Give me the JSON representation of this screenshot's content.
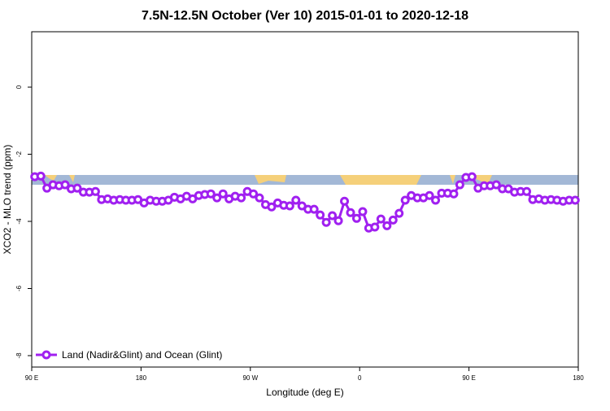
{
  "chart_data": {
    "type": "line",
    "title": "7.5N-12.5N October (Ver 10)   2015-01-01 to 2020-12-18",
    "x_label": "Longitude (deg E)",
    "y_label": "XCO2 - MLO trend (ppm)",
    "x": [
      92.5,
      97.5,
      102.5,
      107.5,
      112.5,
      117.5,
      122.5,
      127.5,
      132.5,
      137.5,
      142.5,
      147.5,
      152.5,
      157.5,
      162.5,
      167.5,
      172.5,
      177.5,
      182.5,
      187.5,
      192.5,
      197.5,
      202.5,
      207.5,
      212.5,
      217.5,
      222.5,
      227.5,
      232.5,
      237.5,
      242.5,
      247.5,
      252.5,
      257.5,
      262.5,
      267.5,
      272.5,
      277.5,
      282.5,
      287.5,
      292.5,
      297.5,
      302.5,
      307.5,
      312.5,
      317.5,
      322.5,
      327.5,
      332.5,
      337.5,
      342.5,
      347.5,
      352.5,
      357.5,
      362.5,
      367.5,
      372.5,
      377.5,
      382.5,
      387.5,
      392.5,
      397.5,
      402.5,
      407.5,
      412.5,
      417.5,
      422.5,
      427.5,
      432.5,
      437.5,
      442.5,
      447.5,
      452.5,
      457.5,
      462.5,
      467.5,
      472.5,
      477.5,
      482.5,
      487.5,
      492.5,
      497.5,
      502.5,
      507.5,
      512.5,
      517.5,
      522.5,
      527.5,
      532.5,
      537.5
    ],
    "series": [
      {
        "name": "Land (Nadir&Glint) and Ocean (Glint)",
        "color": "#a020f0",
        "values": [
          -2.67,
          -2.65,
          -3.01,
          -2.91,
          -2.94,
          -2.91,
          -3.03,
          -3.01,
          -3.13,
          -3.13,
          -3.11,
          -3.35,
          -3.33,
          -3.37,
          -3.35,
          -3.37,
          -3.37,
          -3.35,
          -3.45,
          -3.37,
          -3.4,
          -3.4,
          -3.37,
          -3.28,
          -3.33,
          -3.25,
          -3.33,
          -3.23,
          -3.2,
          -3.18,
          -3.3,
          -3.18,
          -3.33,
          -3.25,
          -3.3,
          -3.11,
          -3.18,
          -3.3,
          -3.5,
          -3.57,
          -3.45,
          -3.52,
          -3.54,
          -3.37,
          -3.54,
          -3.64,
          -3.64,
          -3.81,
          -4.03,
          -3.83,
          -3.98,
          -3.4,
          -3.74,
          -3.91,
          -3.71,
          -4.2,
          -4.17,
          -3.93,
          -4.13,
          -3.96,
          -3.76,
          -3.37,
          -3.23,
          -3.3,
          -3.3,
          -3.23,
          -3.37,
          -3.16,
          -3.16,
          -3.18,
          -2.91,
          -2.69,
          -2.67,
          -3.01,
          -2.94,
          -2.94,
          -2.91,
          -3.03,
          -3.03,
          -3.13,
          -3.11,
          -3.11,
          -3.35,
          -3.33,
          -3.37,
          -3.35,
          -3.37,
          -3.4,
          -3.37,
          -3.37
        ]
      }
    ],
    "xlim": [
      90,
      540
    ],
    "xticks": [
      {
        "value": 90,
        "label": "90 E"
      },
      180,
      {
        "value": 270,
        "label": "90 W"
      },
      {
        "value": 360,
        "label": "0"
      },
      {
        "value": 450,
        "label": "90 E"
      },
      {
        "value": 540,
        "label": "180"
      }
    ],
    "ylim": [
      -8.34,
      1.65
    ],
    "yticks": [
      0,
      -2,
      -4,
      -6,
      -8
    ],
    "legend": "bottom-left"
  }
}
